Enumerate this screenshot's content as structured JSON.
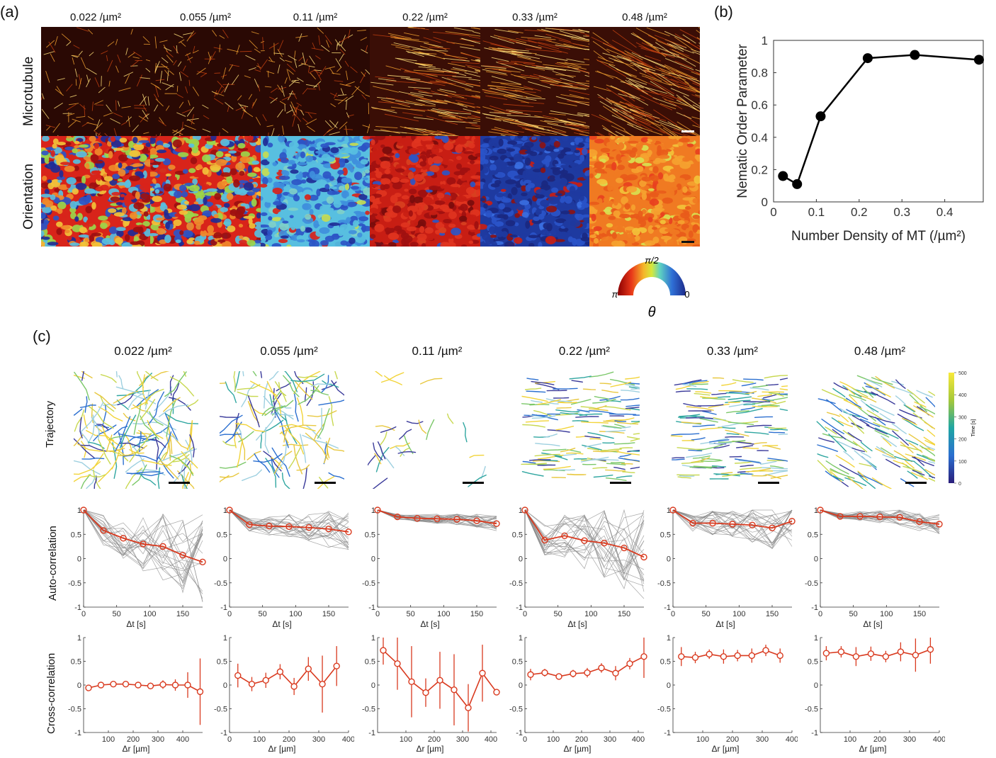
{
  "panels": {
    "a": "(a)",
    "b": "(b)",
    "c": "(c)"
  },
  "densities": [
    "0.022 /µm²",
    "0.055 /µm²",
    "0.11 /µm²",
    "0.22 /µm²",
    "0.33 /µm²",
    "0.48 /µm²"
  ],
  "panel_a": {
    "row_labels": {
      "microtubule": "Microtubule",
      "orientation": "Orientation"
    },
    "orientation_dominance": [
      "mixed",
      "mixed",
      "blue-cyan",
      "red",
      "blue",
      "orange"
    ],
    "colorwheel": {
      "top": "π/2",
      "left": "π",
      "right": "0",
      "symbol": "θ"
    }
  },
  "chart_data": [
    {
      "type": "line",
      "id": "nematic",
      "x": [
        0.022,
        0.055,
        0.11,
        0.22,
        0.33,
        0.48
      ],
      "y": [
        0.16,
        0.11,
        0.53,
        0.89,
        0.91,
        0.88
      ],
      "xlabel": "Number Density of MT (/µm²)",
      "ylabel": "Nematic Order Parameter",
      "xlim": [
        0,
        0.49
      ],
      "ylim": [
        0,
        1
      ],
      "xticks": [
        "0",
        "0.1",
        "0.2",
        "0.3",
        "0.4"
      ],
      "yticks": [
        "0",
        "0.2",
        "0.4",
        "0.6",
        "0.8",
        "1"
      ]
    },
    {
      "type": "line",
      "id": "autocorrelation",
      "xlabel": "Δt [s]",
      "ylabel": "Auto-correlation",
      "xlim": [
        0,
        180
      ],
      "ylim": [
        -1,
        1
      ],
      "xticks": [
        "0",
        "50",
        "100",
        "150"
      ],
      "yticks": [
        "-1",
        "-0.5",
        "0",
        "0.5",
        "1"
      ],
      "x": [
        0,
        30,
        60,
        90,
        120,
        150,
        180
      ],
      "series": [
        {
          "name": "0.022 /µm²",
          "values": [
            1.0,
            0.58,
            0.42,
            0.3,
            0.25,
            0.07,
            -0.07
          ]
        },
        {
          "name": "0.055 /µm²",
          "values": [
            1.0,
            0.7,
            0.67,
            0.66,
            0.64,
            0.61,
            0.55
          ]
        },
        {
          "name": "0.11 /µm²",
          "values": [
            1.0,
            0.86,
            0.83,
            0.82,
            0.81,
            0.78,
            0.72
          ]
        },
        {
          "name": "0.22 /µm²",
          "values": [
            1.0,
            0.38,
            0.47,
            0.37,
            0.32,
            0.22,
            0.03
          ]
        },
        {
          "name": "0.33 /µm²",
          "values": [
            1.0,
            0.73,
            0.73,
            0.71,
            0.69,
            0.63,
            0.77
          ]
        },
        {
          "name": "0.48 /µm²",
          "values": [
            1.0,
            0.87,
            0.87,
            0.86,
            0.85,
            0.76,
            0.71
          ]
        }
      ]
    },
    {
      "type": "errorbar",
      "id": "crosscorrelation",
      "xlabel": "Δr [µm]",
      "ylabel": "Cross-correlation",
      "ylim": [
        -1,
        1
      ],
      "yticks": [
        "-1",
        "-0.5",
        "0",
        "0.5",
        "1"
      ],
      "series": [
        {
          "name": "0.022 /µm²",
          "xlim": [
            0,
            480
          ],
          "xticks": [
            "100",
            "200",
            "300",
            "400"
          ],
          "x": [
            20,
            70,
            120,
            170,
            220,
            270,
            320,
            370,
            420,
            470
          ],
          "values": [
            -0.06,
            0.0,
            0.02,
            0.02,
            0.0,
            -0.02,
            0.01,
            0.0,
            0.0,
            -0.14
          ],
          "err": [
            0.06,
            0.06,
            0.05,
            0.05,
            0.06,
            0.07,
            0.09,
            0.12,
            0.27,
            0.7
          ]
        },
        {
          "name": "0.055 /µm²",
          "xlim": [
            0,
            400
          ],
          "xticks": [
            "0",
            "100",
            "200",
            "300",
            "400"
          ],
          "x": [
            28,
            75,
            122,
            170,
            217,
            265,
            312,
            360
          ],
          "values": [
            0.2,
            0.02,
            0.1,
            0.28,
            -0.03,
            0.34,
            0.02,
            0.4
          ],
          "err": [
            0.25,
            0.15,
            0.16,
            0.16,
            0.18,
            0.25,
            0.6,
            0.42
          ]
        },
        {
          "name": "0.11 /µm²",
          "xlim": [
            0,
            420
          ],
          "xticks": [
            "100",
            "200",
            "300",
            "400"
          ],
          "x": [
            20,
            70,
            120,
            170,
            220,
            270,
            320,
            370,
            420
          ],
          "values": [
            0.73,
            0.45,
            0.07,
            -0.16,
            0.1,
            -0.1,
            -0.48,
            0.25,
            -0.15
          ],
          "err": [
            0.3,
            0.55,
            0.75,
            0.3,
            0.6,
            0.75,
            0.5,
            0.6,
            0.05
          ]
        },
        {
          "name": "0.22 /µm²",
          "xlim": [
            0,
            420
          ],
          "xticks": [
            "0",
            "100",
            "200",
            "300",
            "400"
          ],
          "x": [
            20,
            70,
            120,
            170,
            220,
            270,
            320,
            370,
            420
          ],
          "values": [
            0.22,
            0.26,
            0.18,
            0.24,
            0.26,
            0.36,
            0.25,
            0.45,
            0.6
          ],
          "err": [
            0.12,
            0.08,
            0.06,
            0.08,
            0.1,
            0.1,
            0.15,
            0.12,
            0.45
          ]
        },
        {
          "name": "0.33 /µm²",
          "xlim": [
            0,
            400
          ],
          "xticks": [
            "100",
            "200",
            "300",
            "400"
          ],
          "x": [
            28,
            75,
            122,
            170,
            217,
            265,
            312,
            360
          ],
          "values": [
            0.6,
            0.58,
            0.65,
            0.6,
            0.62,
            0.62,
            0.73,
            0.62
          ],
          "err": [
            0.2,
            0.12,
            0.1,
            0.15,
            0.12,
            0.15,
            0.12,
            0.15
          ]
        },
        {
          "name": "0.48 /µm²",
          "xlim": [
            0,
            400
          ],
          "xticks": [
            "100",
            "200",
            "300",
            "400"
          ],
          "x": [
            20,
            70,
            120,
            170,
            220,
            270,
            320,
            370
          ],
          "values": [
            0.67,
            0.7,
            0.6,
            0.66,
            0.6,
            0.7,
            0.63,
            0.75
          ],
          "err": [
            0.15,
            0.12,
            0.2,
            0.15,
            0.12,
            0.2,
            0.35,
            0.3
          ]
        }
      ]
    }
  ],
  "panel_c": {
    "row_labels": {
      "trajectory": "Trajectory",
      "auto": "Auto-correlation",
      "cross": "Cross-correlation"
    },
    "colorbar": {
      "label": "Time [s]",
      "ticks": [
        "0",
        "100",
        "200",
        "300",
        "400",
        "500"
      ]
    },
    "trajectory_style": [
      "random",
      "random",
      "sparse",
      "horizontal",
      "horizontal",
      "diagonal"
    ]
  },
  "colors": {
    "red": "#d93a1f",
    "gray": "#8a8a8a",
    "black": "#000000"
  }
}
